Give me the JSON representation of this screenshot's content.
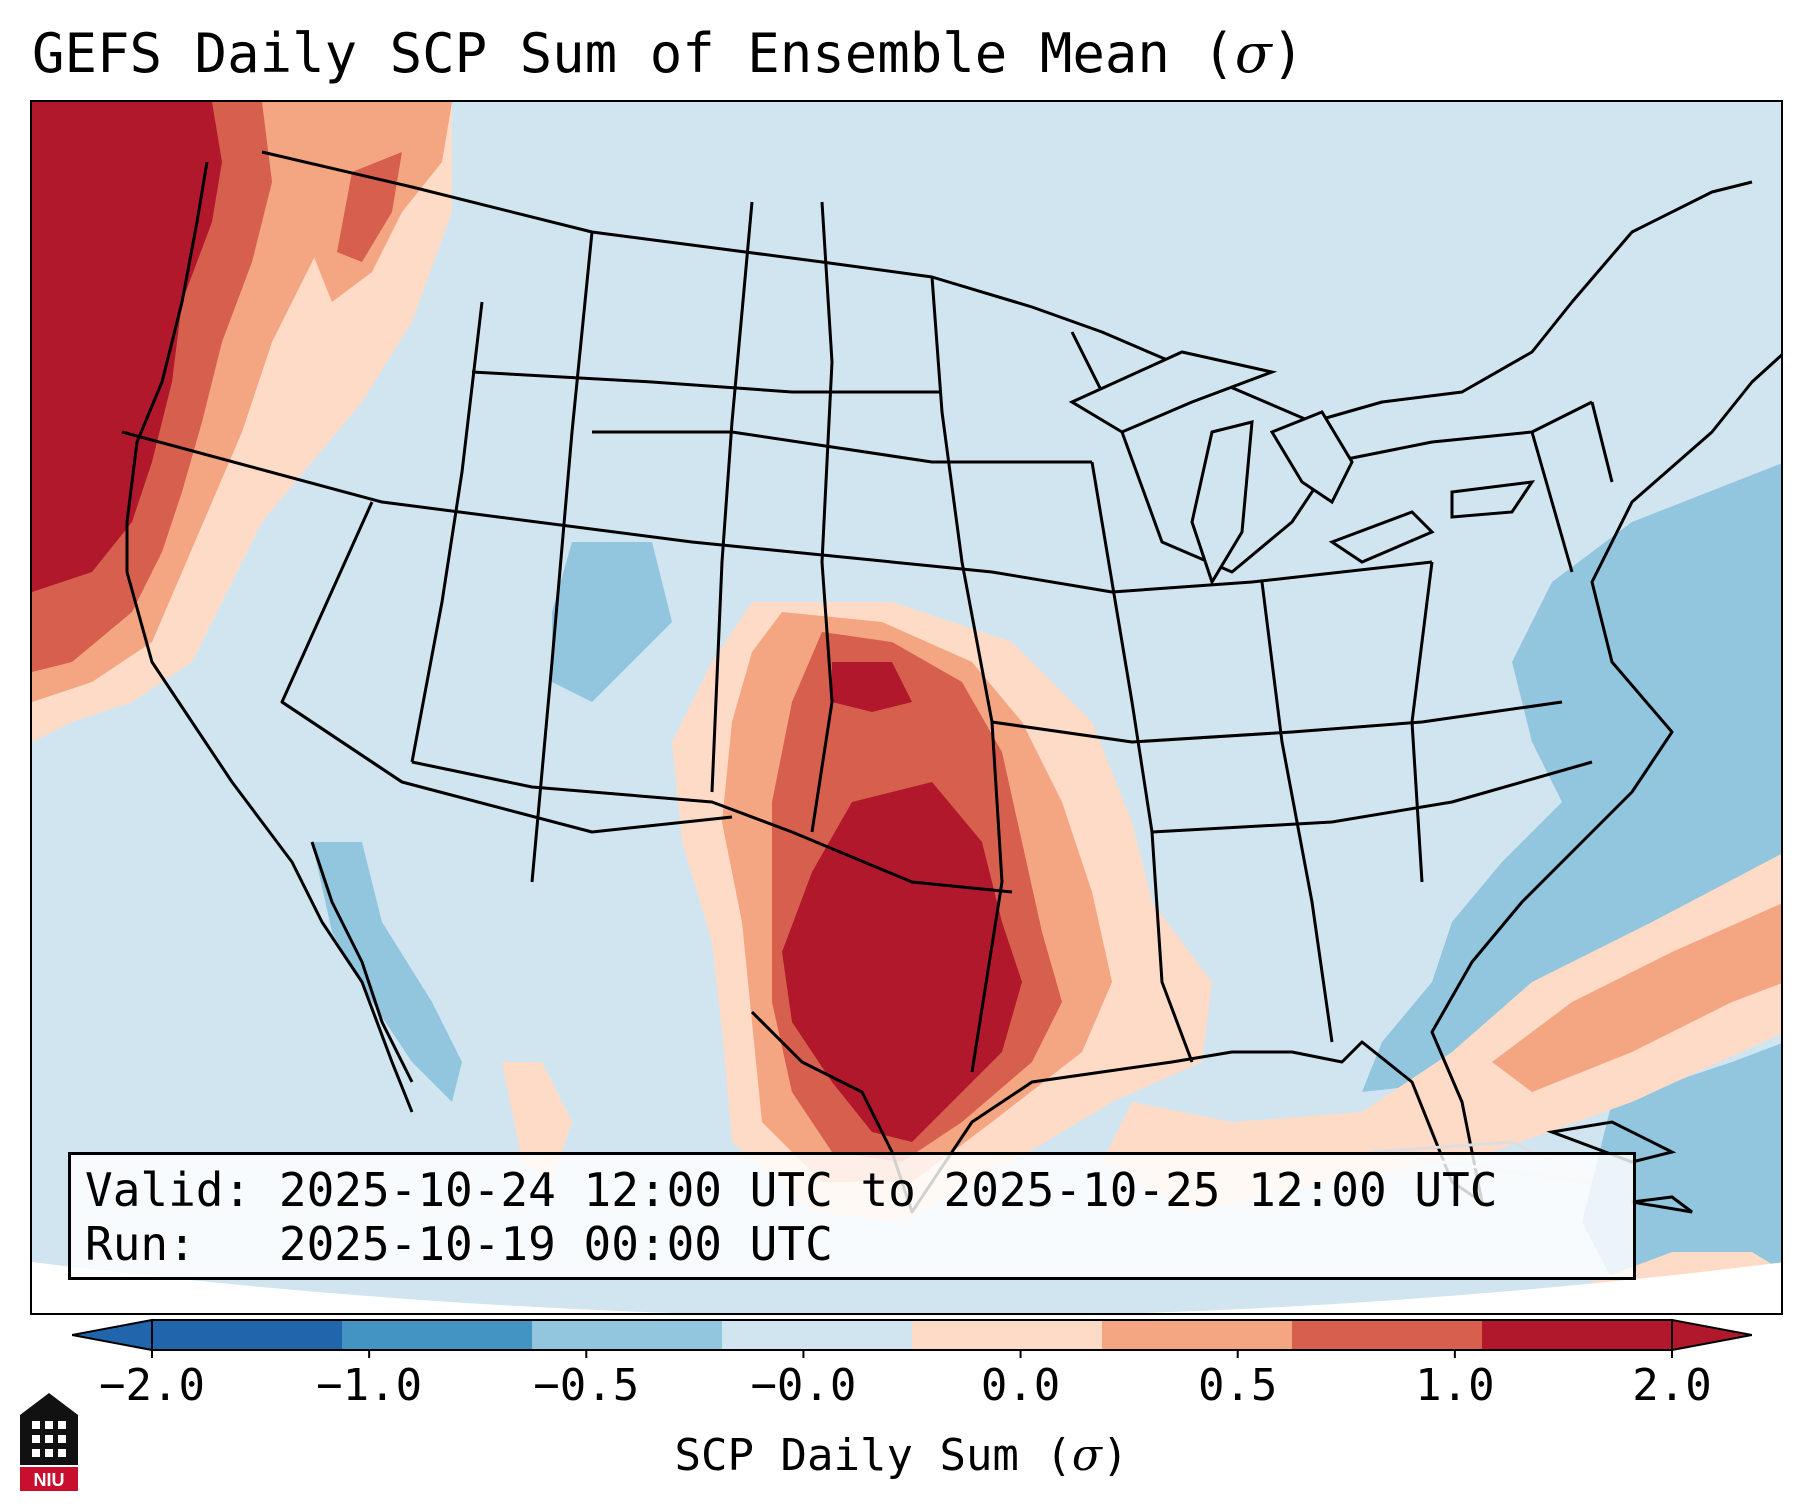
{
  "title": {
    "text": "GEFS Daily SCP Sum of Ensemble Mean (",
    "symbol": "σ",
    "close": ")"
  },
  "info": {
    "valid_label": "Valid:",
    "valid_value": "2025-10-24 12:00 UTC to 2025-10-25 12:00 UTC",
    "run_label": "Run:",
    "run_value": "2025-10-19 00:00 UTC"
  },
  "colorbar": {
    "label_text": "SCP Daily Sum (",
    "label_symbol": "σ",
    "label_close": ")",
    "tick_labels": [
      "−2.0",
      "−1.0",
      "−0.5",
      "−0.0",
      "0.0",
      "0.5",
      "1.0",
      "2.0"
    ],
    "colors": [
      "#2166ac",
      "#4393c3",
      "#92c5de",
      "#d1e5f0",
      "#fddbc7",
      "#f4a582",
      "#d6604d",
      "#b2182b"
    ],
    "extend": "both"
  },
  "map": {
    "projection": "Lambert conformal, CONUS",
    "background_color": "#d1e5f0",
    "ocean_negative_color": "#92c5de",
    "regions": [
      "Pacific Northwest coast: strong positive anomaly (> 2.0)",
      "Southern Plains / Texas / Oklahoma / Kansas: strong positive anomaly (1.0 to > 2.0)",
      "Gulf of Mexico: weak positive anomaly (0.0 to 0.5)",
      "Western Atlantic: negative anomaly (-1.0 to -0.5)",
      "Central Rockies / Colorado: weak negative anomaly (-1.0 to -0.5)"
    ]
  },
  "logo": {
    "alt": "NIU logo",
    "text": "NIU"
  }
}
